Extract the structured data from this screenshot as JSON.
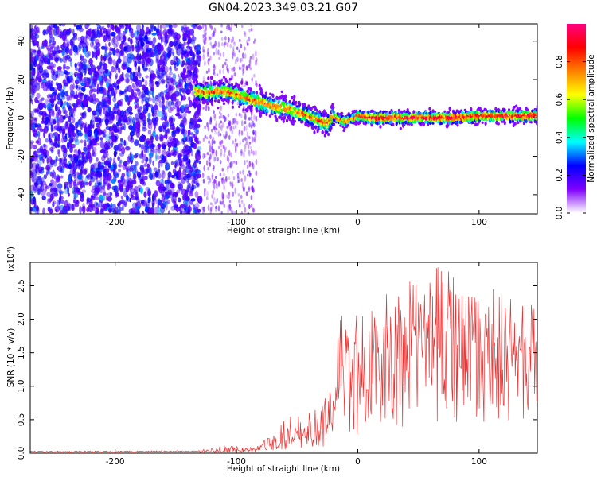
{
  "figure": {
    "title": "GN04.2023.349.03.21.G07"
  },
  "chart_data": [
    {
      "type": "heatmap",
      "xlabel": "Height of straight line (km)",
      "ylabel": "Frequency (Hz)",
      "xlim": [
        -270,
        148
      ],
      "ylim": [
        -50,
        49
      ],
      "xticks": [
        "-200",
        "-100",
        "0",
        "100"
      ],
      "yticks": [
        "40",
        "20",
        "0",
        "-20",
        "-40"
      ],
      "xtick_values": [
        -200,
        -100,
        0,
        100
      ],
      "ytick_values": [
        40,
        20,
        0,
        -20,
        -40
      ],
      "colorbar": {
        "label": "Normalized spectral amplitude",
        "range": [
          0,
          1
        ],
        "ticks": [
          "0.0",
          "0.2",
          "0.4",
          "0.6",
          "0.8"
        ],
        "tick_values": [
          0.0,
          0.2,
          0.4,
          0.6,
          0.8
        ],
        "colors": [
          "#ffffff",
          "#8000ff",
          "#0000ff",
          "#00ffff",
          "#00ff00",
          "#ffff00",
          "#ff8000",
          "#ff0000",
          "#ff0080"
        ]
      },
      "ridge": {
        "x": [
          -135,
          -125,
          -110,
          -100,
          -90,
          -80,
          -70,
          -60,
          -50,
          -40,
          -30,
          -25,
          -20,
          -15,
          -10,
          0,
          10,
          20,
          40,
          60,
          80,
          100,
          120,
          148
        ],
        "y": [
          14,
          13,
          14,
          12,
          10,
          8,
          6,
          5,
          3,
          1,
          -2,
          -3,
          1,
          -1,
          -2,
          1,
          0,
          0,
          0,
          0,
          0,
          1,
          1,
          1
        ]
      },
      "noise_region_x": [
        -270,
        -130
      ],
      "grid": false
    },
    {
      "type": "line",
      "xlabel": "Height of straight line (km)",
      "ylabel": "SNR (10 * v/v)",
      "y_scale_label": "(x10⁴)",
      "xlim": [
        -270,
        148
      ],
      "ylim": [
        0,
        2.85
      ],
      "xticks": [
        "-200",
        "-100",
        "0",
        "100"
      ],
      "yticks": [
        "0.0",
        "0.5",
        "1.0",
        "1.5",
        "2.0",
        "2.5"
      ],
      "xtick_values": [
        -200,
        -100,
        0,
        100
      ],
      "ytick_values": [
        0.0,
        0.5,
        1.0,
        1.5,
        2.0,
        2.5
      ],
      "series": [
        {
          "color": "#ee3333",
          "envelope_x": [
            -270,
            -130,
            -110,
            -90,
            -80,
            -70,
            -60,
            -50,
            -40,
            -30,
            -22,
            -18,
            -10,
            0,
            10,
            20,
            30,
            40,
            50,
            60,
            70,
            80,
            90,
            100,
            110,
            120,
            130,
            140,
            148
          ],
          "envelope_mean": [
            0.02,
            0.03,
            0.04,
            0.04,
            0.06,
            0.12,
            0.18,
            0.25,
            0.32,
            0.35,
            0.55,
            0.95,
            1.05,
            1.1,
            1.25,
            1.5,
            1.55,
            1.6,
            1.65,
            1.7,
            1.75,
            1.75,
            1.7,
            1.65,
            1.6,
            1.55,
            1.5,
            1.5,
            1.45
          ],
          "envelope_max": [
            0.05,
            0.06,
            0.12,
            0.08,
            0.15,
            0.3,
            0.55,
            0.55,
            0.6,
            0.7,
            1.3,
            2.2,
            2.2,
            2.1,
            2.2,
            2.5,
            2.7,
            2.65,
            2.6,
            2.75,
            2.85,
            2.7,
            2.6,
            2.65,
            2.5,
            2.4,
            2.3,
            2.3,
            2.1
          ]
        }
      ],
      "grid": false
    }
  ]
}
